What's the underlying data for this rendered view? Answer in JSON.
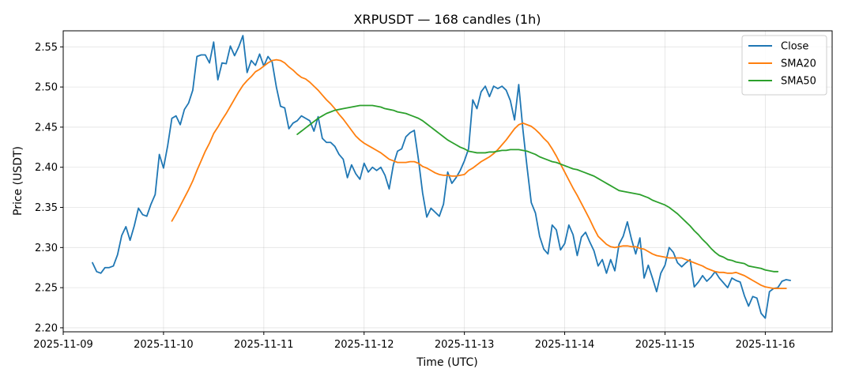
{
  "chart_data": {
    "type": "line",
    "title": "XRPUSDT — 168 candles (1h)",
    "xlabel": "Time (UTC)",
    "ylabel": "Price (USDT)",
    "x_start": "2025-11-09 07:00",
    "x_step_hours": 1,
    "xlim": [
      "2025-11-09 00:00",
      "2025-11-16 16:00"
    ],
    "ylim": [
      2.195,
      2.57
    ],
    "x_ticks": [
      "2025-11-09",
      "2025-11-10",
      "2025-11-11",
      "2025-11-12",
      "2025-11-13",
      "2025-11-14",
      "2025-11-15",
      "2025-11-16"
    ],
    "y_ticks": [
      "2.20",
      "2.25",
      "2.30",
      "2.35",
      "2.40",
      "2.45",
      "2.50",
      "2.55"
    ],
    "grid": true,
    "legend_position": "top-right",
    "series": [
      {
        "name": "Close",
        "color": "#1f77b4",
        "values": [
          2.281,
          2.27,
          2.268,
          2.275,
          2.275,
          2.277,
          2.291,
          2.315,
          2.326,
          2.309,
          2.327,
          2.349,
          2.341,
          2.339,
          2.354,
          2.366,
          2.416,
          2.399,
          2.427,
          2.461,
          2.464,
          2.453,
          2.472,
          2.48,
          2.496,
          2.538,
          2.54,
          2.54,
          2.53,
          2.556,
          2.509,
          2.53,
          2.529,
          2.551,
          2.539,
          2.55,
          2.564,
          2.518,
          2.533,
          2.527,
          2.541,
          2.526,
          2.538,
          2.531,
          2.5,
          2.476,
          2.474,
          2.448,
          2.455,
          2.458,
          2.464,
          2.461,
          2.458,
          2.445,
          2.463,
          2.436,
          2.431,
          2.431,
          2.426,
          2.416,
          2.41,
          2.387,
          2.403,
          2.392,
          2.385,
          2.405,
          2.394,
          2.4,
          2.396,
          2.4,
          2.39,
          2.373,
          2.403,
          2.42,
          2.423,
          2.438,
          2.443,
          2.446,
          2.41,
          2.368,
          2.338,
          2.349,
          2.344,
          2.339,
          2.354,
          2.394,
          2.38,
          2.387,
          2.396,
          2.408,
          2.423,
          2.484,
          2.473,
          2.494,
          2.501,
          2.488,
          2.501,
          2.498,
          2.501,
          2.496,
          2.483,
          2.459,
          2.503,
          2.447,
          2.4,
          2.356,
          2.343,
          2.314,
          2.298,
          2.292,
          2.328,
          2.322,
          2.297,
          2.305,
          2.328,
          2.316,
          2.29,
          2.313,
          2.319,
          2.307,
          2.296,
          2.277,
          2.285,
          2.268,
          2.285,
          2.271,
          2.304,
          2.314,
          2.332,
          2.31,
          2.292,
          2.312,
          2.262,
          2.278,
          2.262,
          2.245,
          2.268,
          2.278,
          2.3,
          2.294,
          2.281,
          2.276,
          2.281,
          2.285,
          2.251,
          2.257,
          2.265,
          2.258,
          2.263,
          2.27,
          2.262,
          2.256,
          2.25,
          2.262,
          2.259,
          2.257,
          2.24,
          2.227,
          2.239,
          2.237,
          2.218,
          2.212,
          2.245,
          2.249,
          2.25,
          2.258,
          2.26,
          2.259
        ]
      },
      {
        "name": "SMA20",
        "color": "#ff7f0e",
        "values": [
          null,
          null,
          null,
          null,
          null,
          null,
          null,
          null,
          null,
          null,
          null,
          null,
          null,
          null,
          null,
          null,
          null,
          null,
          null,
          2.333,
          2.342,
          2.352,
          2.362,
          2.372,
          2.383,
          2.396,
          2.408,
          2.42,
          2.43,
          2.442,
          2.45,
          2.459,
          2.467,
          2.476,
          2.485,
          2.494,
          2.502,
          2.508,
          2.513,
          2.519,
          2.522,
          2.526,
          2.53,
          2.533,
          2.534,
          2.533,
          2.53,
          2.525,
          2.521,
          2.516,
          2.512,
          2.51,
          2.506,
          2.501,
          2.496,
          2.49,
          2.484,
          2.479,
          2.473,
          2.466,
          2.46,
          2.453,
          2.446,
          2.439,
          2.434,
          2.43,
          2.427,
          2.424,
          2.421,
          2.418,
          2.414,
          2.41,
          2.408,
          2.406,
          2.406,
          2.406,
          2.407,
          2.407,
          2.405,
          2.401,
          2.399,
          2.396,
          2.393,
          2.391,
          2.39,
          2.39,
          2.389,
          2.389,
          2.39,
          2.391,
          2.396,
          2.399,
          2.403,
          2.407,
          2.41,
          2.413,
          2.417,
          2.422,
          2.428,
          2.434,
          2.441,
          2.448,
          2.453,
          2.455,
          2.453,
          2.451,
          2.447,
          2.442,
          2.436,
          2.431,
          2.423,
          2.414,
          2.404,
          2.394,
          2.384,
          2.374,
          2.365,
          2.355,
          2.345,
          2.335,
          2.324,
          2.314,
          2.309,
          2.304,
          2.301,
          2.3,
          2.301,
          2.302,
          2.302,
          2.301,
          2.301,
          2.299,
          2.298,
          2.295,
          2.292,
          2.29,
          2.289,
          2.288,
          2.287,
          2.287,
          2.287,
          2.287,
          2.285,
          2.283,
          2.281,
          2.279,
          2.277,
          2.274,
          2.272,
          2.27,
          2.269,
          2.269,
          2.268,
          2.268,
          2.269,
          2.267,
          2.265,
          2.262,
          2.259,
          2.256,
          2.253,
          2.251,
          2.25,
          2.249,
          2.249,
          2.249,
          2.249
        ]
      },
      {
        "name": "SMA50",
        "color": "#2ca02c",
        "values": [
          null,
          null,
          null,
          null,
          null,
          null,
          null,
          null,
          null,
          null,
          null,
          null,
          null,
          null,
          null,
          null,
          null,
          null,
          null,
          null,
          null,
          null,
          null,
          null,
          null,
          null,
          null,
          null,
          null,
          null,
          null,
          null,
          null,
          null,
          null,
          null,
          null,
          null,
          null,
          null,
          null,
          null,
          null,
          null,
          null,
          null,
          null,
          null,
          null,
          2.441,
          2.445,
          2.449,
          2.453,
          2.457,
          2.461,
          2.464,
          2.467,
          2.469,
          2.471,
          2.472,
          2.473,
          2.474,
          2.475,
          2.476,
          2.477,
          2.477,
          2.477,
          2.477,
          2.476,
          2.475,
          2.473,
          2.472,
          2.471,
          2.469,
          2.468,
          2.467,
          2.465,
          2.463,
          2.461,
          2.458,
          2.454,
          2.45,
          2.446,
          2.442,
          2.438,
          2.434,
          2.431,
          2.428,
          2.425,
          2.423,
          2.42,
          2.419,
          2.418,
          2.418,
          2.418,
          2.419,
          2.419,
          2.42,
          2.421,
          2.421,
          2.422,
          2.422,
          2.422,
          2.421,
          2.42,
          2.418,
          2.416,
          2.413,
          2.411,
          2.409,
          2.407,
          2.406,
          2.404,
          2.402,
          2.4,
          2.398,
          2.397,
          2.395,
          2.393,
          2.391,
          2.389,
          2.386,
          2.383,
          2.38,
          2.377,
          2.374,
          2.371,
          2.37,
          2.369,
          2.368,
          2.367,
          2.366,
          2.364,
          2.362,
          2.359,
          2.357,
          2.355,
          2.353,
          2.35,
          2.346,
          2.342,
          2.337,
          2.332,
          2.327,
          2.321,
          2.316,
          2.31,
          2.305,
          2.299,
          2.294,
          2.29,
          2.288,
          2.285,
          2.284,
          2.282,
          2.281,
          2.28,
          2.277,
          2.276,
          2.275,
          2.274,
          2.272,
          2.271,
          2.27,
          2.27
        ]
      }
    ]
  }
}
